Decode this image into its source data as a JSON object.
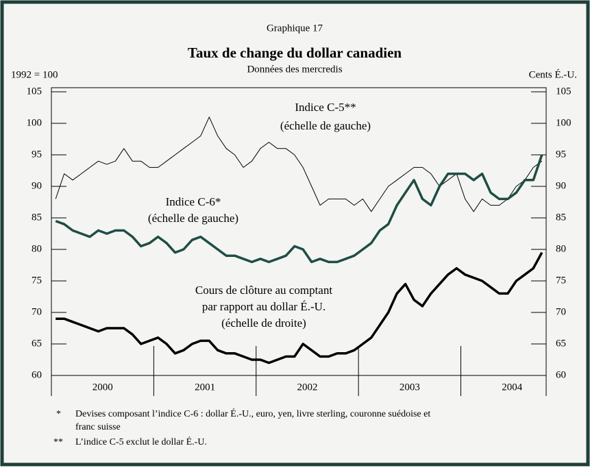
{
  "chart_data": {
    "type": "line",
    "label": "Graphique 17",
    "title": "Taux de change du dollar canadien",
    "subtitle": "Données des mercredis",
    "ylabel": "1992 = 100",
    "y2label": "Cents É.-U.",
    "categories": [
      null,
      null,
      null,
      null,
      null,
      null,
      "2000",
      null,
      null,
      null,
      null,
      null,
      null,
      null,
      null,
      null,
      null,
      null,
      "2001",
      null,
      null,
      null,
      null,
      null,
      null,
      null,
      null,
      null,
      null,
      null,
      "2002",
      null,
      null,
      null,
      null,
      null,
      null,
      null,
      null,
      null,
      null,
      null,
      "2003",
      null,
      null,
      null,
      null,
      null,
      null,
      null,
      null,
      null,
      null,
      null,
      "2004",
      null,
      null,
      null
    ],
    "ylim": [
      60,
      105
    ],
    "yticks": [
      60,
      65,
      70,
      75,
      80,
      85,
      90,
      95,
      100,
      105
    ],
    "y2lim": [
      60,
      105
    ],
    "y2ticks": [
      60,
      65,
      70,
      75,
      80,
      85,
      90,
      95,
      100,
      105
    ],
    "series": [
      {
        "name": "Indice C-5** (échelle de gauche)",
        "color": "#000000",
        "values": [
          88,
          92,
          91,
          92,
          93,
          94,
          93.5,
          94,
          96,
          94,
          94,
          93,
          93,
          94,
          95,
          96,
          97,
          98,
          101,
          98,
          96,
          95,
          93,
          94,
          96,
          97,
          96,
          96,
          95,
          93,
          90,
          87,
          88,
          88,
          88,
          87,
          88,
          86,
          88,
          90,
          91,
          92,
          93,
          93,
          92,
          90,
          91,
          92,
          88,
          86,
          88,
          87,
          87,
          88,
          90,
          91,
          93,
          94
        ]
      },
      {
        "name": "Indice C-6* (échelle de gauche)",
        "color": "#1e4d44",
        "values": [
          84.5,
          84,
          83,
          82.5,
          82,
          83,
          82.5,
          83,
          83,
          82,
          80.5,
          81,
          82,
          81,
          79.5,
          80,
          81.5,
          82,
          81,
          80,
          79,
          79,
          78.5,
          78,
          78.5,
          78,
          78.5,
          79,
          80.5,
          80,
          78,
          78.5,
          78,
          78,
          78.5,
          79,
          80,
          81,
          83,
          84,
          87,
          89,
          91,
          88,
          87,
          90,
          92,
          92,
          92,
          91,
          92,
          89,
          88,
          88,
          89,
          91,
          91,
          95
        ]
      },
      {
        "name": "Cours de clôture au comptant par rapport au dollar É.-U. (échelle de droite)",
        "color": "#000000",
        "axis": "y2",
        "values": [
          69,
          69,
          68.5,
          68,
          67.5,
          67,
          67.5,
          67.5,
          67.5,
          66.5,
          65,
          65.5,
          66,
          65,
          63.5,
          64,
          65,
          65.5,
          65.5,
          64,
          63.5,
          63.5,
          63,
          62.5,
          62.5,
          62,
          62.5,
          63,
          63,
          65,
          64,
          63,
          63,
          63.5,
          63.5,
          64,
          65,
          66,
          68,
          70,
          73,
          74.5,
          72,
          71,
          73,
          74.5,
          76,
          77,
          76,
          75.5,
          75,
          74,
          73,
          73,
          75,
          76,
          77,
          79.5
        ]
      }
    ],
    "annotations": [
      "Indice C-5**",
      "(échelle de gauche)",
      "Indice C-6*",
      "(échelle de gauche)",
      "Cours de clôture au comptant",
      "par rapport au dollar É.-U.",
      "(échelle de droite)"
    ],
    "footnotes": [
      {
        "marker": "*",
        "text": "Devises composant l’indice C-6 : dollar É.-U., euro, yen, livre sterling, couronne suédoise et",
        "text2": "franc suisse"
      },
      {
        "marker": "**",
        "text": "L’indice C-5 exclut le dollar É.-U."
      }
    ]
  }
}
